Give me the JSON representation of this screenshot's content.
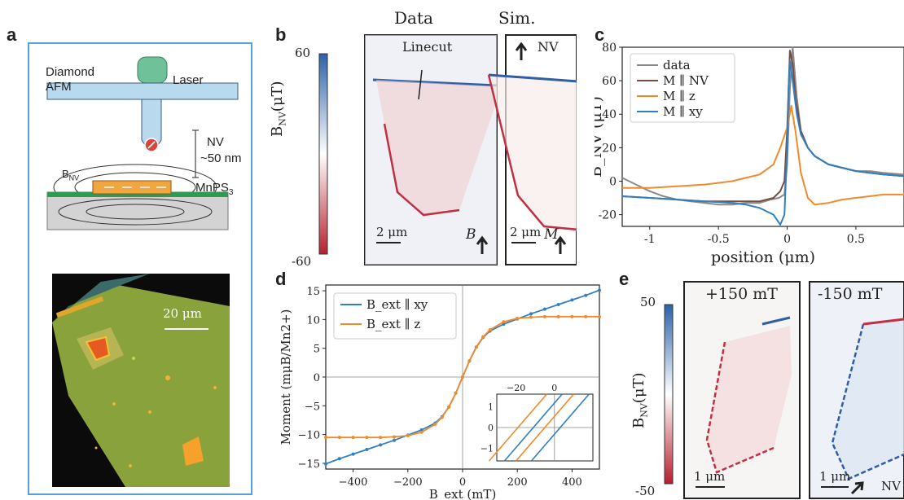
{
  "panels": {
    "a": {
      "letter": "a",
      "schematic_labels": {
        "diamond_afm": "Diamond\nAFM",
        "laser": "Laser",
        "nv": "NV",
        "distance": "~50 nm",
        "bnv": "BNV",
        "material": "MnPS3"
      },
      "micrograph_scale": "20 μm"
    },
    "b": {
      "letter": "b",
      "colorbar_label": "B_NV (μT)",
      "colorbar_ticks": [
        "60",
        "-60"
      ],
      "data_title": "Data",
      "sim_title": "Sim.",
      "linecut_label": "Linecut",
      "nv_label": "NV",
      "data_scale": "2 μm",
      "sim_scale": "2 μm",
      "data_field_label": "B",
      "sim_field_label": "M"
    },
    "c": {
      "letter": "c"
    },
    "d": {
      "letter": "d"
    },
    "e": {
      "letter": "e",
      "colorbar_label": "B_NV (μT)",
      "colorbar_ticks": [
        "50",
        "-50"
      ],
      "left_title": "+150 mT",
      "right_title": "-150 mT",
      "left_scale": "1 μm",
      "right_scale": "1 μm",
      "nv_label": "NV"
    }
  },
  "colors": {
    "frame_blue": "#5aa0d8",
    "data_gray": "#8a8a8a",
    "nv_brown": "#7b4a3e",
    "z_orange": "#f08a2c",
    "xy_blue": "#2f7fc1"
  },
  "chart_data": [
    {
      "type": "line",
      "panel": "c",
      "xlabel": "position (μm)",
      "ylabel": "B_NV (μT)",
      "xlim": [
        -1.2,
        0.85
      ],
      "ylim": [
        -27,
        80
      ],
      "xticks": [
        -1,
        -0.5,
        0,
        0.5
      ],
      "yticks": [
        -20,
        0,
        20,
        40,
        60,
        80
      ],
      "xtick_labels": [
        "-1",
        "-0.5",
        "0",
        "0.5"
      ],
      "ytick_labels": [
        "-20",
        "0",
        "20",
        "40",
        "60",
        "80"
      ],
      "legend": [
        "data",
        "M ∥ NV",
        "M ∥ z",
        "M ∥ xy"
      ],
      "series": [
        {
          "name": "data",
          "color": "#8a8a8a",
          "x": [
            -1.2,
            -1.1,
            -1.0,
            -0.9,
            -0.8,
            -0.7,
            -0.6,
            -0.5,
            -0.4,
            -0.3,
            -0.2,
            -0.12,
            -0.06,
            -0.02,
            0.0,
            0.02,
            0.04,
            0.07,
            0.1,
            0.15,
            0.2,
            0.3,
            0.4,
            0.5,
            0.6,
            0.7,
            0.85
          ],
          "y": [
            2,
            -2,
            -6,
            -9,
            -11,
            -12,
            -13,
            -14,
            -14,
            -13,
            -13,
            -11,
            -10,
            -8,
            10,
            55,
            80,
            50,
            30,
            20,
            15,
            10,
            8,
            6,
            6,
            5,
            4
          ]
        },
        {
          "name": "M ∥ NV",
          "color": "#7b4a3e",
          "x": [
            -1.2,
            -1.0,
            -0.8,
            -0.6,
            -0.4,
            -0.2,
            -0.1,
            -0.05,
            -0.02,
            0.0,
            0.02,
            0.04,
            0.06,
            0.1,
            0.15,
            0.2,
            0.3,
            0.4,
            0.5,
            0.6,
            0.7,
            0.85
          ],
          "y": [
            -9,
            -10,
            -11,
            -12,
            -12,
            -12,
            -10,
            -6,
            0,
            30,
            78,
            70,
            50,
            30,
            20,
            15,
            10,
            8,
            6,
            5,
            4,
            3
          ]
        },
        {
          "name": "M ∥ z",
          "color": "#f08a2c",
          "x": [
            -1.2,
            -1.0,
            -0.8,
            -0.6,
            -0.4,
            -0.3,
            -0.2,
            -0.1,
            -0.05,
            0.0,
            0.03,
            0.06,
            0.1,
            0.15,
            0.2,
            0.3,
            0.4,
            0.5,
            0.6,
            0.7,
            0.85
          ],
          "y": [
            -4,
            -4,
            -3,
            -2,
            0,
            2,
            4,
            10,
            20,
            32,
            45,
            30,
            5,
            -10,
            -14,
            -13,
            -11,
            -10,
            -9,
            -8,
            -8
          ]
        },
        {
          "name": "M ∥ xy",
          "color": "#2f7fc1",
          "x": [
            -1.2,
            -1.0,
            -0.8,
            -0.6,
            -0.4,
            -0.3,
            -0.2,
            -0.1,
            -0.05,
            -0.02,
            0.0,
            0.01,
            0.02,
            0.04,
            0.07,
            0.1,
            0.15,
            0.2,
            0.3,
            0.4,
            0.5,
            0.6,
            0.7,
            0.85
          ],
          "y": [
            -9,
            -10,
            -11,
            -12,
            -13,
            -14,
            -16,
            -20,
            -26,
            -20,
            20,
            55,
            72,
            60,
            40,
            28,
            20,
            15,
            10,
            8,
            6,
            5,
            4,
            3
          ]
        }
      ]
    },
    {
      "type": "line",
      "panel": "d",
      "xlabel": "B_ext (mT)",
      "ylabel": "Moment (mμB/Mn2+)",
      "xlim": [
        -500,
        500
      ],
      "ylim": [
        -16,
        16
      ],
      "xticks": [
        -400,
        -200,
        0,
        200,
        400
      ],
      "yticks": [
        -15,
        -10,
        -5,
        0,
        5,
        10,
        15
      ],
      "xtick_labels": [
        "−400",
        "−200",
        "0",
        "200",
        "400"
      ],
      "ytick_labels": [
        "−15",
        "−10",
        "−5",
        "0",
        "5",
        "10",
        "15"
      ],
      "legend": [
        "B_ext ∥ xy",
        "B_ext ∥ z"
      ],
      "series": [
        {
          "name": "B_ext ∥ xy",
          "color": "#2f7fc1",
          "x": [
            -500,
            -450,
            -400,
            -350,
            -300,
            -250,
            -200,
            -150,
            -100,
            -75,
            -50,
            -25,
            0,
            25,
            50,
            75,
            100,
            150,
            200,
            250,
            300,
            350,
            400,
            450,
            500
          ],
          "y": [
            -15.1,
            -14.2,
            -13.4,
            -12.6,
            -11.8,
            -11.0,
            -10.1,
            -9.2,
            -8.0,
            -6.9,
            -5.2,
            -2.8,
            0,
            2.8,
            5.2,
            6.9,
            8.0,
            9.2,
            10.1,
            11.0,
            11.8,
            12.6,
            13.4,
            14.2,
            15.1
          ]
        },
        {
          "name": "B_ext ∥ z",
          "color": "#f08a2c",
          "x": [
            -500,
            -450,
            -400,
            -350,
            -300,
            -250,
            -200,
            -150,
            -100,
            -75,
            -50,
            -25,
            0,
            25,
            50,
            75,
            100,
            150,
            200,
            250,
            300,
            350,
            400,
            450,
            500
          ],
          "y": [
            -10.5,
            -10.5,
            -10.5,
            -10.5,
            -10.5,
            -10.4,
            -10.2,
            -9.6,
            -8.2,
            -7.0,
            -5.2,
            -2.8,
            0,
            2.8,
            5.2,
            7.0,
            8.2,
            9.6,
            10.2,
            10.4,
            10.5,
            10.5,
            10.5,
            10.5,
            10.5
          ]
        }
      ],
      "inset": {
        "xlim": [
          -30,
          20
        ],
        "ylim": [
          -1.6,
          1.6
        ],
        "xtick_labels": [
          "−20",
          "0"
        ],
        "ytick_labels": [
          "1",
          "0",
          "−1"
        ]
      }
    }
  ]
}
